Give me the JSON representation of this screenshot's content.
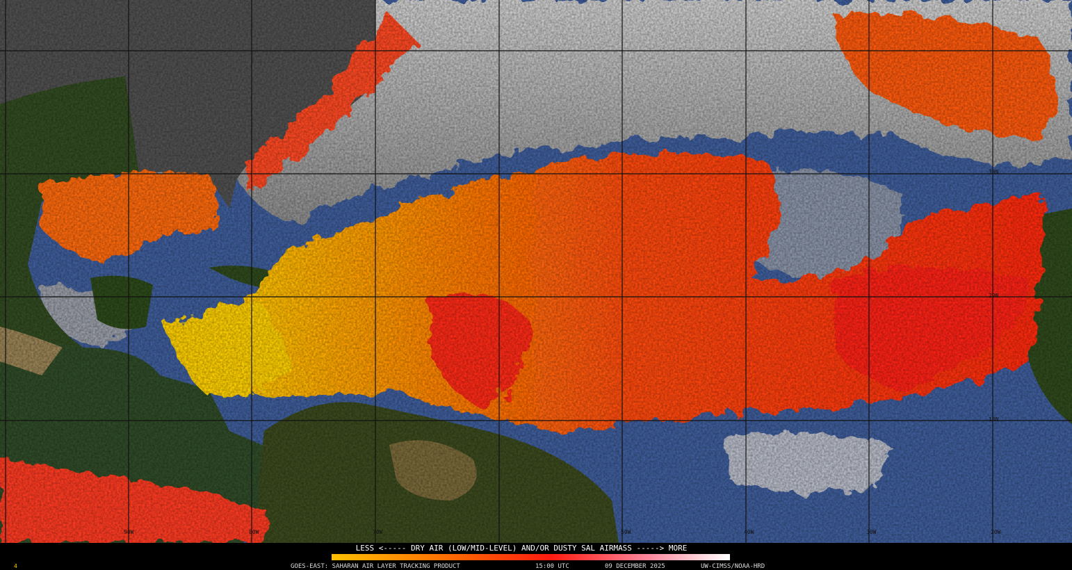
{
  "map": {
    "lon_labels": [
      "90W",
      "80W",
      "70W",
      "50W",
      "40W",
      "30W",
      "20W"
    ],
    "lat_labels": [
      "30N",
      "20N",
      "10N"
    ]
  },
  "legend": {
    "caption": "LESS <----- DRY AIR (LOW/MID-LEVEL) AND/OR DUSTY SAL AIRMASS -----> MORE"
  },
  "footer": {
    "frame": "4",
    "product": "GOES-EAST: SAHARAN AIR LAYER TRACKING PRODUCT",
    "time": "15:00 UTC",
    "date": "09 DECEMBER 2025",
    "credit": "UW-CIMSS/NOAA-HRD"
  }
}
